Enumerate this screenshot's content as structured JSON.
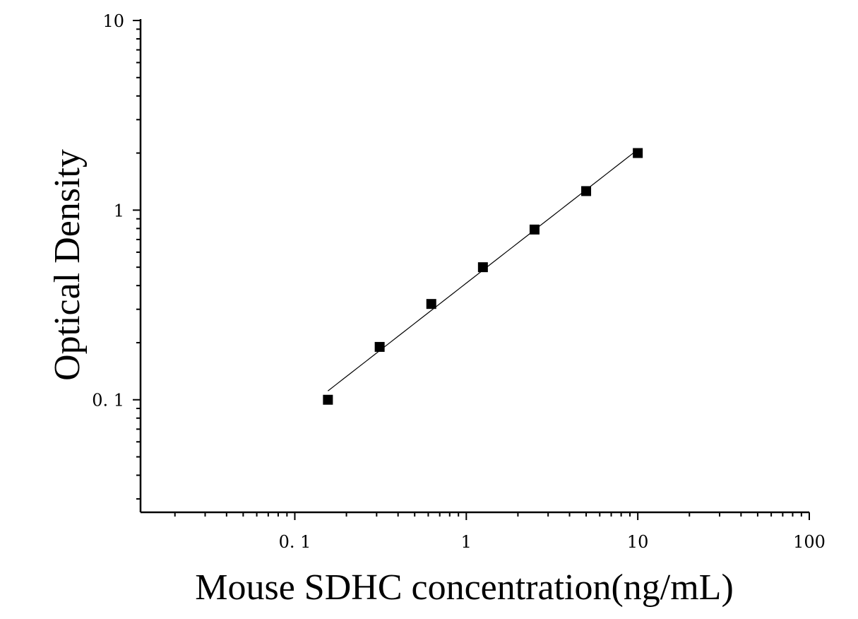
{
  "chart_data": {
    "type": "scatter",
    "title": "",
    "xlabel": "Mouse SDHC concentration(ng/mL)",
    "ylabel": "Optical Density",
    "xscale": "log",
    "yscale": "log",
    "xlim": [
      0.0126,
      100
    ],
    "ylim": [
      0.0255,
      10
    ],
    "xticks": [
      {
        "value": 0.1,
        "label": "0. 1"
      },
      {
        "value": 1,
        "label": "1"
      },
      {
        "value": 10,
        "label": "10"
      },
      {
        "value": 100,
        "label": "100"
      }
    ],
    "yticks": [
      {
        "value": 0.1,
        "label": "0. 1"
      },
      {
        "value": 1,
        "label": "1"
      },
      {
        "value": 10,
        "label": "10"
      }
    ],
    "grid": false,
    "legend": "none",
    "marker": "square",
    "color": "#000000",
    "series": [
      {
        "x": [
          0.156,
          0.3125,
          0.625,
          1.25,
          2.5,
          5,
          10
        ],
        "y": [
          0.1,
          0.19,
          0.32,
          0.5,
          0.79,
          1.26,
          2.0
        ]
      }
    ]
  }
}
